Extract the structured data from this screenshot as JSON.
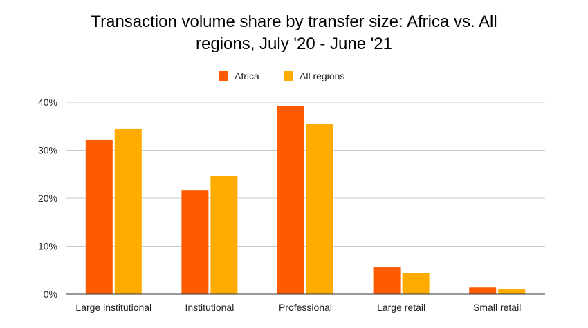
{
  "chart_data": {
    "type": "bar",
    "title_lines": [
      "Transaction volume share by transfer size: Africa vs. All",
      "regions, July '20 - June '21"
    ],
    "categories": [
      "Large institutional",
      "Institutional",
      "Professional",
      "Large retail",
      "Small retail"
    ],
    "series": [
      {
        "name": "Africa",
        "color": "#ff5a00",
        "values": [
          32.1,
          21.7,
          39.2,
          5.6,
          1.4
        ]
      },
      {
        "name": "All regions",
        "color": "#ffab00",
        "values": [
          34.4,
          24.6,
          35.5,
          4.4,
          1.1
        ]
      }
    ],
    "ylim": [
      0,
      40
    ],
    "yticks": [
      0,
      10,
      20,
      30,
      40
    ],
    "ytick_labels": [
      "0%",
      "10%",
      "20%",
      "30%",
      "40%"
    ],
    "grid": true,
    "legend_position": "top-center",
    "xlabel": "",
    "ylabel": ""
  }
}
